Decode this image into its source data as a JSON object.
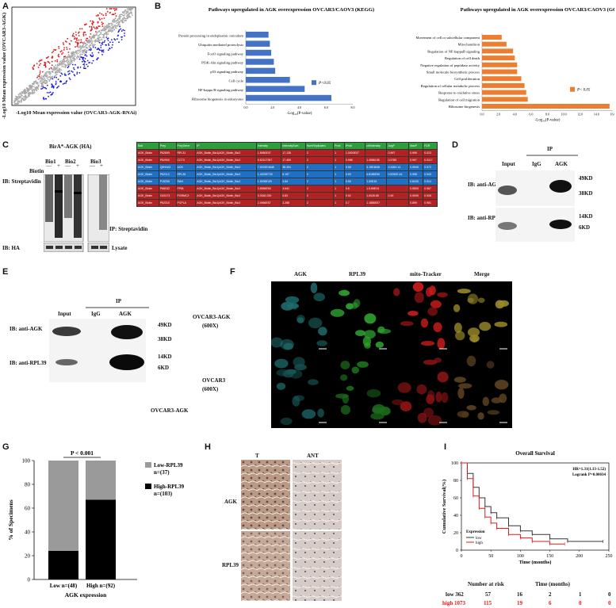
{
  "panelA": {
    "label": "A",
    "ylabel": "-Log10 Mean expression value (OVCAR3-AGK)",
    "xlabel": "-Log10 Mean expression value (OVCAR3-AGK-RNAi)"
  },
  "panelB": {
    "label": "B"
  },
  "panelC": {
    "label": "C",
    "title": "BirA*-AGK (HA)",
    "bio1": "Bio1",
    "bio2": "Bio2",
    "bio3": "Bio3",
    "biotin": "Biotin",
    "signs": [
      "—",
      "+",
      "—",
      "+",
      "—",
      "+"
    ],
    "ib_strep": "IB: Streptavidin",
    "ib_ha": "IB: HA",
    "ip_strep": "IP: Streptavidin",
    "lysate": "Lysate",
    "table_headers": [
      "Bait",
      "Prey",
      "PreyGene",
      "IP",
      "Intensity",
      "IntensitySum",
      "NumReplicates",
      "Prob",
      "iProb",
      "ctrlIntensity",
      "AvgP",
      "MaxP",
      "FDR"
    ],
    "table_rows": [
      [
        "AGK_Biotin",
        "P62899",
        "RPL31",
        "AGK_Biotin_Bio1|AGK_Biotin_Bio2",
        "1.5950E07",
        "17.135",
        "2",
        "1",
        "1.0000E07",
        "",
        "0.997",
        "0.999",
        "0.023"
      ],
      [
        "AGK_Biotin",
        "P62900",
        "CCT3",
        "AGK_Biotin_Bio1|AGK_Biotin_Bio2",
        "9.52107357",
        "17.469",
        "2",
        "1",
        "0.998",
        "1.4986195",
        "0.9785",
        "0.997",
        "0.0117"
      ],
      [
        "AGK_Biotin",
        "Q9H4A3",
        "AGK",
        "AGK_Biotin_Bio1|AGK_Biotin_Bio2",
        "7.0023E4848",
        "38.394",
        "2",
        "1",
        "0.98",
        "3.15E4848",
        "3.3284.14",
        "0.9545",
        "0.972"
      ],
      [
        "AGK_Biotin",
        "P62113",
        "RPL39",
        "AGK_Biotin_Bio1|AGK_Biotin_Bio2",
        "1.4323E730",
        "6.157",
        "2",
        "1",
        "0.99",
        "4.8186E50",
        "0.5250E.44",
        "0.998",
        "0.943"
      ],
      [
        "AGK_Biotin",
        "P15330",
        "RAN",
        "AGK_Biotin_Bio1|AGK_Biotin_Bio2",
        "1.9005E4/9",
        "3.84",
        "2",
        "1",
        "0.95",
        "1.00E15",
        "",
        "0.8433",
        "0.914"
      ],
      [
        "AGK_Biotin",
        "P68032",
        "PPIB",
        "AGK_Biotin_Bio1|AGK_Biotin_Bio2",
        "3.5556E50",
        "3.641",
        "2",
        "1",
        "0.5",
        "1.5.89E24",
        "",
        "0.5593",
        "0.967"
      ],
      [
        "AGK_Biotin",
        "O15173",
        "PGRMC2",
        "AGK_Biotin_Bio1|AGK_Biotin_Bio2",
        "3.3340.230",
        "5.83",
        "2",
        "1",
        "0.92",
        "1.0026.65",
        "0.49",
        "0.9005",
        "0.926"
      ],
      [
        "AGK_Biotin",
        "P62310",
        "PCPLA",
        "AGK_Biotin_Bio1|AGK_Biotin_Bio2",
        "2.4966E57",
        "3.288",
        "2",
        "1",
        "0.7",
        "1.1886E57",
        "",
        "0.899",
        "0.981"
      ]
    ]
  },
  "panelD": {
    "label": "D",
    "ip": "IP",
    "input": "Input",
    "igg": "IgG",
    "agk": "AGK",
    "ib1": "IB: anti-AGK",
    "ib2": "IB: anti-RPL39",
    "m1": "49KD",
    "m2": "38KD",
    "m3": "14KD",
    "m4": "6KD"
  },
  "panelE": {
    "label": "E",
    "ip": "IP",
    "input": "Input",
    "igg": "IgG",
    "agk": "AGK",
    "ib1": "IB: anti-AGK",
    "ib2": "IB: anti-RPL39",
    "m1": "49KD",
    "m2": "38KD",
    "m3": "14KD",
    "m4": "6KD"
  },
  "panelF": {
    "label": "F",
    "cols": [
      "AGK",
      "RPL39",
      "mito-Tracker",
      "Merge"
    ],
    "row1a": "OVCAR3-AGK",
    "row1b": "(600X)",
    "row2a": "OVCAR3",
    "row2b": "(600X)",
    "bottom": "OVCAR3-AGK"
  },
  "panelG": {
    "label": "G"
  },
  "panelH": {
    "label": "H",
    "t": "T",
    "ant": "ANT",
    "agk": "AGK",
    "rpl39": "RPL39"
  },
  "panelI": {
    "label": "I",
    "risk_title": "Number at risk",
    "time_title": "Time (months)",
    "low_label": "low 362",
    "low_values": [
      "57",
      "16",
      "2",
      "1",
      "0"
    ],
    "high_label": "high 1073",
    "high_values": [
      "115",
      "19",
      "6",
      "0",
      "0"
    ]
  },
  "colors": {
    "kegg": "#4472c4",
    "go": "#ed7d31",
    "up": "#e01a1a",
    "down": "#1a1ae0",
    "table_red": "#b22222",
    "table_blue": "#1f6fc2",
    "table_green": "#2e9d3e"
  },
  "chart_data": [
    {
      "type": "scatter",
      "title": "",
      "xlabel": "-Log10 Mean expression value (OVCAR3-AGK-RNAi)",
      "ylabel": "-Log10 Mean expression value (OVCAR3-AGK)",
      "series": [
        {
          "name": "",
          "note": "dense cloud along diagonal; red points above, blue points below"
        }
      ]
    },
    {
      "type": "bar",
      "orientation": "horizontal",
      "title": "Pathways upregulated in AGK overexpression OVCAR3/CAOV3 (KEGG)",
      "xlabel": "-Log₁₀(P-value)",
      "xlim": [
        0,
        8
      ],
      "xticks": [
        "0.0",
        "2.0",
        "4.0",
        "6.0",
        "8.0"
      ],
      "legend": "P<0.05",
      "categories": [
        "Protein processing in endoplasmic reticulum",
        "Ubiquitin mediated proteolysis",
        "FoxO signaling pathway",
        "PI3K-Akt signaling pathway",
        "p53 signaling pathway",
        "Cell cycle",
        "NF-kappa B signaling pathway",
        "Ribosome biogenesis in eukaryotes"
      ],
      "values": [
        1.7,
        1.8,
        1.9,
        2.1,
        2.2,
        3.3,
        4.4,
        6.4
      ]
    },
    {
      "type": "bar",
      "orientation": "horizontal",
      "title": "Pathways upregulated in AGK overexpression OVCAR3/CAOV3 (GO)",
      "xlabel": "-Log₁₀(P-value)",
      "xlim": [
        0,
        16
      ],
      "xticks": [
        "0.0",
        "2.0",
        "4.0",
        "6.0",
        "8.0",
        "10.0",
        "12.0",
        "14.0",
        "16.0"
      ],
      "legend": "P< 0.05",
      "categories": [
        "Movement of cell or subcellular component",
        "Mitochondrion",
        "Regulation of NF-kappaB signaling",
        "Regulation of cell death",
        "Negative regulation of peptidase activity",
        "Small molecule biosynthetic process",
        "Cell proliferation",
        "Regulation of cellular metabolic process",
        "Response to oxidative stress",
        "Regulation of cell migration",
        "Ribosome biogenesis"
      ],
      "values": [
        2.4,
        3.0,
        3.8,
        4.0,
        4.3,
        4.3,
        4.8,
        5.2,
        5.4,
        5.6,
        15.6
      ]
    },
    {
      "type": "bar",
      "stacked": true,
      "title": "P < 0.001",
      "ylabel": "% of Specimens",
      "xlabel": "AGK  expression",
      "ylim": [
        0,
        100
      ],
      "yticks": [
        "0",
        "20",
        "40",
        "60",
        "80",
        "100"
      ],
      "categories": [
        "Low n=(48)",
        "High n=(92)"
      ],
      "series": [
        {
          "name": "High-RPL39 n=(103)",
          "values": [
            24,
            67
          ],
          "color": "#000000"
        },
        {
          "name": "Low-RPL39 n=(37)",
          "values": [
            76,
            33
          ],
          "color": "#9a9a9a"
        }
      ]
    },
    {
      "type": "line",
      "title": "Overall Survival",
      "annotation": [
        "HR=1.31(1.13-1.52)",
        "Logrank P=0.00034"
      ],
      "xlabel": "Time (months)",
      "ylabel": "Cumulative Survival(%)",
      "xlim": [
        0,
        250
      ],
      "ylim": [
        0,
        100
      ],
      "xticks": [
        "0",
        "50",
        "100",
        "150",
        "200",
        "250"
      ],
      "yticks": [
        "0",
        "20",
        "40",
        "60",
        "80",
        "100"
      ],
      "legend_title": "Expression",
      "series": [
        {
          "name": "low",
          "color": "#333333",
          "x": [
            0,
            10,
            20,
            30,
            40,
            50,
            60,
            80,
            100,
            120,
            150,
            180,
            240
          ],
          "y": [
            100,
            88,
            72,
            60,
            50,
            43,
            37,
            28,
            22,
            18,
            13,
            10,
            10
          ]
        },
        {
          "name": "high",
          "color": "#e01a1a",
          "x": [
            0,
            10,
            20,
            30,
            40,
            50,
            60,
            80,
            100,
            120,
            150,
            175
          ],
          "y": [
            100,
            82,
            62,
            48,
            38,
            31,
            25,
            18,
            14,
            10,
            7,
            7
          ]
        }
      ]
    }
  ]
}
